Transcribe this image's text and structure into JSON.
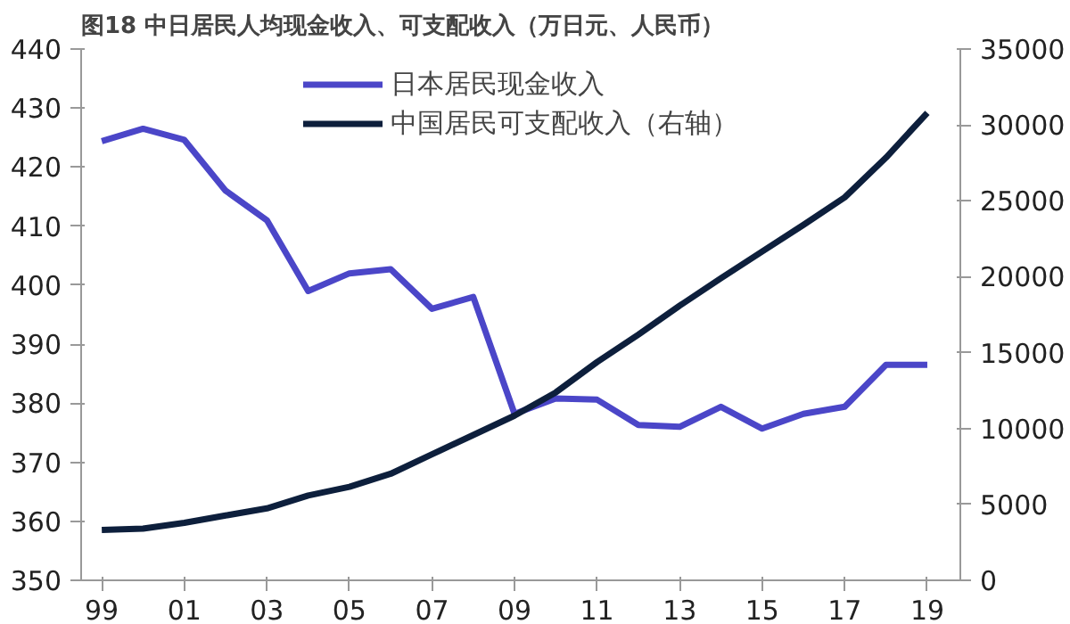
{
  "chart_data": {
    "type": "line",
    "title": "图18 中日居民人均现金收入、可支配收入（万日元、人民币）",
    "x": [
      1999,
      2000,
      2001,
      2002,
      2003,
      2004,
      2005,
      2006,
      2007,
      2008,
      2009,
      2010,
      2011,
      2012,
      2013,
      2014,
      2015,
      2016,
      2017,
      2018,
      2019
    ],
    "series": [
      {
        "name": "日本居民现金收入",
        "color": "#4b46c8",
        "values": [
          424.4,
          426.5,
          424.6,
          416,
          411,
          399,
          402,
          402.7,
          396,
          398,
          378.2,
          380.8,
          380.6,
          376.3,
          376,
          379.4,
          375.7,
          378.2,
          379.4,
          386.5,
          386.5
        ]
      },
      {
        "name": "中国居民可支配收入（右轴）",
        "color": "#0d1f3c",
        "axis": "y2",
        "values": [
          3320,
          3410,
          3790,
          4270,
          4740,
          5590,
          6160,
          7020,
          8300,
          9570,
          10850,
          12380,
          14380,
          16190,
          18090,
          19900,
          21660,
          23420,
          25230,
          27850,
          30800
        ]
      }
    ],
    "xlim": [
      1998.5,
      2019.8
    ],
    "xticks": [
      {
        "value": 1999,
        "label": "99"
      },
      {
        "value": 2001,
        "label": "01"
      },
      {
        "value": 2003,
        "label": "03"
      },
      {
        "value": 2005,
        "label": "05"
      },
      {
        "value": 2007,
        "label": "07"
      },
      {
        "value": 2009,
        "label": "09"
      },
      {
        "value": 2011,
        "label": "11"
      },
      {
        "value": 2013,
        "label": "13"
      },
      {
        "value": 2015,
        "label": "15"
      },
      {
        "value": 2017,
        "label": "17"
      },
      {
        "value": 2019,
        "label": "19"
      }
    ],
    "ylim": [
      350,
      440
    ],
    "yticks": [
      350,
      360,
      370,
      380,
      390,
      400,
      410,
      420,
      430,
      440
    ],
    "y2lim": [
      0,
      35000
    ],
    "y2ticks": [
      0,
      5000,
      10000,
      15000,
      20000,
      25000,
      30000,
      35000
    ],
    "grid": false,
    "legend": "top",
    "marker": "none",
    "line_style": "solid"
  }
}
